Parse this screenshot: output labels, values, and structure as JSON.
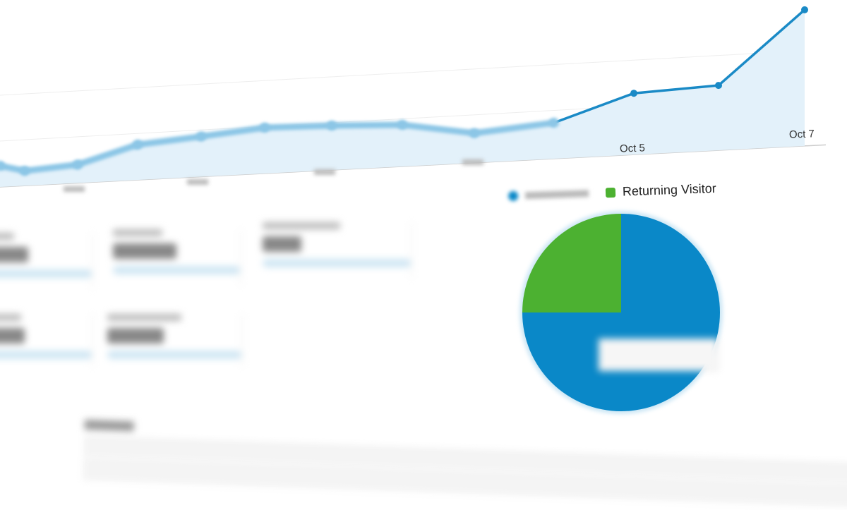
{
  "chart_data": [
    {
      "type": "area",
      "x_tick_labels": [
        "Oct 5",
        "Oct 7"
      ],
      "values": [
        30,
        21,
        26,
        50,
        57,
        65,
        63,
        59,
        42,
        51,
        87,
        92,
        193
      ],
      "grid": true,
      "colors": {
        "line": "#1a8ac6",
        "fill": "#e3f1fa"
      }
    },
    {
      "type": "pie",
      "legend": [
        "Returning Visitor"
      ],
      "slices": [
        {
          "name": "Returning Visitor",
          "value": 25,
          "color": "#4cb131"
        },
        {
          "value": 75,
          "color": "#0a88c8"
        }
      ],
      "legend_placement": "top"
    }
  ]
}
